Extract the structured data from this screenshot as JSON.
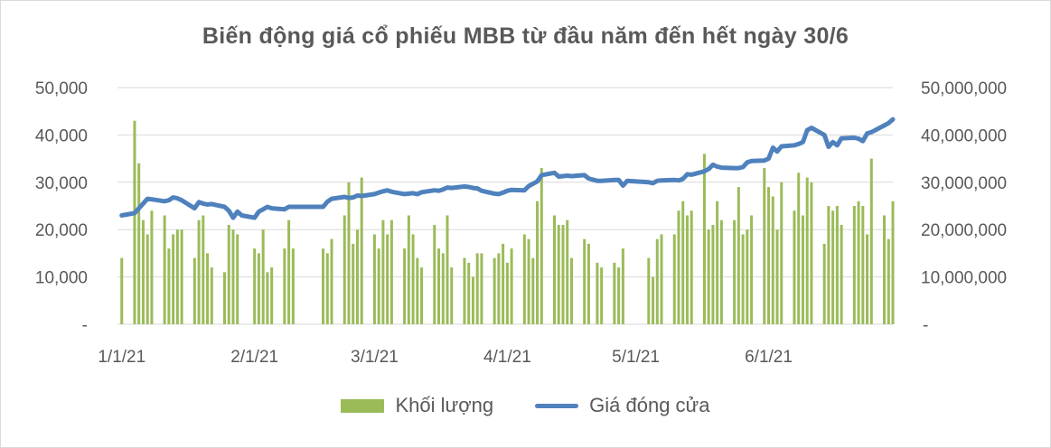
{
  "chart_data": {
    "type": "bar+line",
    "title": "Biến động giá cổ phiếu MBB từ đầu năm đến hết ngày 30/6",
    "x_start": "2021-01-01",
    "x_end": "2021-06-30",
    "xlim": [
      "2020-12-31",
      "2021-06-30"
    ],
    "xticks": [
      "1/1/21",
      "2/1/21",
      "3/1/21",
      "4/1/21",
      "5/1/21",
      "6/1/21"
    ],
    "left_axis": {
      "ylim": [
        0,
        50000
      ],
      "ticks": [
        "-",
        "10,000",
        "20,000",
        "30,000",
        "40,000",
        "50,000"
      ]
    },
    "right_axis": {
      "ylim": [
        0,
        50000000
      ],
      "ticks": [
        "-",
        "10,000,000",
        "20,000,000",
        "30,000,000",
        "40,000,000",
        "50,000,000"
      ]
    },
    "grid": true,
    "legend_position": "bottom",
    "series": [
      {
        "name": "Khối lượng",
        "type": "bar",
        "axis": "right",
        "color": "#9bbb59",
        "points": [
          [
            "2021-01-01",
            14000000
          ],
          [
            "2021-01-04",
            43000000
          ],
          [
            "2021-01-05",
            34000000
          ],
          [
            "2021-01-06",
            22000000
          ],
          [
            "2021-01-07",
            19000000
          ],
          [
            "2021-01-08",
            24000000
          ],
          [
            "2021-01-11",
            23000000
          ],
          [
            "2021-01-12",
            16000000
          ],
          [
            "2021-01-13",
            19000000
          ],
          [
            "2021-01-14",
            20000000
          ],
          [
            "2021-01-15",
            20000000
          ],
          [
            "2021-01-18",
            14000000
          ],
          [
            "2021-01-19",
            22000000
          ],
          [
            "2021-01-20",
            23000000
          ],
          [
            "2021-01-21",
            15000000
          ],
          [
            "2021-01-22",
            12000000
          ],
          [
            "2021-01-25",
            11000000
          ],
          [
            "2021-01-26",
            21000000
          ],
          [
            "2021-01-27",
            20000000
          ],
          [
            "2021-01-28",
            19000000
          ],
          [
            "2021-02-01",
            16000000
          ],
          [
            "2021-02-02",
            15000000
          ],
          [
            "2021-02-03",
            20000000
          ],
          [
            "2021-02-04",
            11000000
          ],
          [
            "2021-02-05",
            12000000
          ],
          [
            "2021-02-08",
            16000000
          ],
          [
            "2021-02-09",
            22000000
          ],
          [
            "2021-02-10",
            16000000
          ],
          [
            "2021-02-17",
            16000000
          ],
          [
            "2021-02-18",
            15000000
          ],
          [
            "2021-02-19",
            18000000
          ],
          [
            "2021-02-22",
            23000000
          ],
          [
            "2021-02-23",
            30000000
          ],
          [
            "2021-02-24",
            17000000
          ],
          [
            "2021-02-25",
            20000000
          ],
          [
            "2021-02-26",
            31000000
          ],
          [
            "2021-03-01",
            19000000
          ],
          [
            "2021-03-02",
            16000000
          ],
          [
            "2021-03-03",
            22000000
          ],
          [
            "2021-03-04",
            19000000
          ],
          [
            "2021-03-05",
            22000000
          ],
          [
            "2021-03-08",
            16000000
          ],
          [
            "2021-03-09",
            23000000
          ],
          [
            "2021-03-10",
            19000000
          ],
          [
            "2021-03-11",
            14000000
          ],
          [
            "2021-03-12",
            12000000
          ],
          [
            "2021-03-15",
            21000000
          ],
          [
            "2021-03-16",
            16000000
          ],
          [
            "2021-03-17",
            15000000
          ],
          [
            "2021-03-18",
            23000000
          ],
          [
            "2021-03-19",
            12000000
          ],
          [
            "2021-03-22",
            14000000
          ],
          [
            "2021-03-23",
            13000000
          ],
          [
            "2021-03-24",
            10000000
          ],
          [
            "2021-03-25",
            15000000
          ],
          [
            "2021-03-26",
            15000000
          ],
          [
            "2021-03-29",
            14000000
          ],
          [
            "2021-03-30",
            15000000
          ],
          [
            "2021-03-31",
            17000000
          ],
          [
            "2021-04-01",
            13000000
          ],
          [
            "2021-04-02",
            16000000
          ],
          [
            "2021-04-05",
            19000000
          ],
          [
            "2021-04-06",
            18000000
          ],
          [
            "2021-04-07",
            14000000
          ],
          [
            "2021-04-08",
            26000000
          ],
          [
            "2021-04-09",
            33000000
          ],
          [
            "2021-04-12",
            23000000
          ],
          [
            "2021-04-13",
            21000000
          ],
          [
            "2021-04-14",
            21000000
          ],
          [
            "2021-04-15",
            22000000
          ],
          [
            "2021-04-16",
            14000000
          ],
          [
            "2021-04-19",
            18000000
          ],
          [
            "2021-04-20",
            17000000
          ],
          [
            "2021-04-22",
            13000000
          ],
          [
            "2021-04-23",
            12000000
          ],
          [
            "2021-04-26",
            13000000
          ],
          [
            "2021-04-27",
            12000000
          ],
          [
            "2021-04-28",
            16000000
          ],
          [
            "2021-05-04",
            14000000
          ],
          [
            "2021-05-05",
            10000000
          ],
          [
            "2021-05-06",
            18000000
          ],
          [
            "2021-05-07",
            19000000
          ],
          [
            "2021-05-10",
            19000000
          ],
          [
            "2021-05-11",
            24000000
          ],
          [
            "2021-05-12",
            26000000
          ],
          [
            "2021-05-13",
            23000000
          ],
          [
            "2021-05-14",
            24000000
          ],
          [
            "2021-05-17",
            36000000
          ],
          [
            "2021-05-18",
            20000000
          ],
          [
            "2021-05-19",
            21000000
          ],
          [
            "2021-05-20",
            26000000
          ],
          [
            "2021-05-21",
            22000000
          ],
          [
            "2021-05-24",
            22000000
          ],
          [
            "2021-05-25",
            29000000
          ],
          [
            "2021-05-26",
            19000000
          ],
          [
            "2021-05-27",
            20000000
          ],
          [
            "2021-05-28",
            23000000
          ],
          [
            "2021-05-31",
            33000000
          ],
          [
            "2021-06-01",
            29000000
          ],
          [
            "2021-06-02",
            27000000
          ],
          [
            "2021-06-03",
            20000000
          ],
          [
            "2021-06-04",
            30000000
          ],
          [
            "2021-06-07",
            24000000
          ],
          [
            "2021-06-08",
            32000000
          ],
          [
            "2021-06-09",
            23000000
          ],
          [
            "2021-06-10",
            31000000
          ],
          [
            "2021-06-11",
            30000000
          ],
          [
            "2021-06-14",
            17000000
          ],
          [
            "2021-06-15",
            25000000
          ],
          [
            "2021-06-16",
            24000000
          ],
          [
            "2021-06-17",
            25000000
          ],
          [
            "2021-06-18",
            21000000
          ],
          [
            "2021-06-21",
            25000000
          ],
          [
            "2021-06-22",
            26000000
          ],
          [
            "2021-06-23",
            25000000
          ],
          [
            "2021-06-24",
            19000000
          ],
          [
            "2021-06-25",
            35000000
          ],
          [
            "2021-06-28",
            23000000
          ],
          [
            "2021-06-29",
            18000000
          ],
          [
            "2021-06-30",
            26000000
          ]
        ]
      },
      {
        "name": "Giá đóng cửa",
        "type": "line",
        "axis": "left",
        "color": "#4f81bd",
        "points": [
          [
            "2021-01-01",
            23000
          ],
          [
            "2021-01-04",
            23500
          ],
          [
            "2021-01-05",
            24500
          ],
          [
            "2021-01-06",
            25500
          ],
          [
            "2021-01-07",
            26500
          ],
          [
            "2021-01-08",
            26400
          ],
          [
            "2021-01-11",
            26000
          ],
          [
            "2021-01-12",
            26200
          ],
          [
            "2021-01-13",
            26800
          ],
          [
            "2021-01-14",
            26600
          ],
          [
            "2021-01-15",
            26200
          ],
          [
            "2021-01-18",
            24500
          ],
          [
            "2021-01-19",
            25800
          ],
          [
            "2021-01-20",
            25500
          ],
          [
            "2021-01-21",
            25300
          ],
          [
            "2021-01-22",
            25400
          ],
          [
            "2021-01-25",
            24800
          ],
          [
            "2021-01-26",
            24000
          ],
          [
            "2021-01-27",
            22500
          ],
          [
            "2021-01-28",
            23800
          ],
          [
            "2021-01-29",
            23000
          ],
          [
            "2021-02-01",
            22500
          ],
          [
            "2021-02-02",
            23800
          ],
          [
            "2021-02-03",
            24300
          ],
          [
            "2021-02-04",
            24800
          ],
          [
            "2021-02-05",
            24500
          ],
          [
            "2021-02-08",
            24300
          ],
          [
            "2021-02-09",
            24800
          ],
          [
            "2021-02-10",
            24800
          ],
          [
            "2021-02-17",
            24800
          ],
          [
            "2021-02-18",
            25900
          ],
          [
            "2021-02-19",
            26500
          ],
          [
            "2021-02-22",
            26900
          ],
          [
            "2021-02-23",
            26700
          ],
          [
            "2021-02-24",
            26800
          ],
          [
            "2021-02-25",
            27200
          ],
          [
            "2021-02-26",
            27100
          ],
          [
            "2021-03-01",
            27500
          ],
          [
            "2021-03-02",
            27800
          ],
          [
            "2021-03-03",
            28100
          ],
          [
            "2021-03-04",
            28300
          ],
          [
            "2021-03-05",
            28000
          ],
          [
            "2021-03-08",
            27500
          ],
          [
            "2021-03-09",
            27600
          ],
          [
            "2021-03-10",
            27700
          ],
          [
            "2021-03-11",
            27500
          ],
          [
            "2021-03-12",
            27900
          ],
          [
            "2021-03-15",
            28300
          ],
          [
            "2021-03-16",
            28200
          ],
          [
            "2021-03-17",
            28500
          ],
          [
            "2021-03-18",
            28900
          ],
          [
            "2021-03-19",
            28800
          ],
          [
            "2021-03-22",
            29100
          ],
          [
            "2021-03-23",
            29000
          ],
          [
            "2021-03-24",
            28800
          ],
          [
            "2021-03-25",
            28700
          ],
          [
            "2021-03-26",
            28200
          ],
          [
            "2021-03-29",
            27600
          ],
          [
            "2021-03-30",
            27500
          ],
          [
            "2021-03-31",
            27800
          ],
          [
            "2021-04-01",
            28200
          ],
          [
            "2021-04-02",
            28400
          ],
          [
            "2021-04-05",
            28300
          ],
          [
            "2021-04-06",
            29200
          ],
          [
            "2021-04-07",
            29700
          ],
          [
            "2021-04-08",
            30200
          ],
          [
            "2021-04-09",
            31500
          ],
          [
            "2021-04-12",
            32000
          ],
          [
            "2021-04-13",
            31200
          ],
          [
            "2021-04-14",
            31300
          ],
          [
            "2021-04-15",
            31400
          ],
          [
            "2021-04-16",
            31300
          ],
          [
            "2021-04-19",
            31500
          ],
          [
            "2021-04-20",
            30800
          ],
          [
            "2021-04-22",
            30300
          ],
          [
            "2021-04-23",
            30300
          ],
          [
            "2021-04-26",
            30500
          ],
          [
            "2021-04-27",
            30500
          ],
          [
            "2021-04-28",
            29300
          ],
          [
            "2021-04-29",
            30300
          ],
          [
            "2021-05-04",
            30000
          ],
          [
            "2021-05-05",
            29800
          ],
          [
            "2021-05-06",
            30300
          ],
          [
            "2021-05-07",
            30400
          ],
          [
            "2021-05-10",
            30500
          ],
          [
            "2021-05-11",
            30400
          ],
          [
            "2021-05-12",
            30700
          ],
          [
            "2021-05-13",
            31700
          ],
          [
            "2021-05-14",
            31600
          ],
          [
            "2021-05-17",
            32300
          ],
          [
            "2021-05-18",
            32800
          ],
          [
            "2021-05-19",
            33700
          ],
          [
            "2021-05-20",
            33300
          ],
          [
            "2021-05-21",
            33100
          ],
          [
            "2021-05-24",
            33000
          ],
          [
            "2021-05-25",
            33000
          ],
          [
            "2021-05-26",
            33200
          ],
          [
            "2021-05-27",
            34200
          ],
          [
            "2021-05-28",
            34500
          ],
          [
            "2021-05-31",
            34600
          ],
          [
            "2021-06-01",
            35000
          ],
          [
            "2021-06-02",
            37300
          ],
          [
            "2021-06-03",
            36500
          ],
          [
            "2021-06-04",
            37600
          ],
          [
            "2021-06-07",
            37800
          ],
          [
            "2021-06-08",
            38100
          ],
          [
            "2021-06-09",
            38500
          ],
          [
            "2021-06-10",
            41000
          ],
          [
            "2021-06-11",
            41500
          ],
          [
            "2021-06-14",
            40000
          ],
          [
            "2021-06-15",
            37500
          ],
          [
            "2021-06-16",
            38500
          ],
          [
            "2021-06-17",
            37800
          ],
          [
            "2021-06-18",
            39300
          ],
          [
            "2021-06-21",
            39400
          ],
          [
            "2021-06-22",
            39200
          ],
          [
            "2021-06-23",
            38700
          ],
          [
            "2021-06-24",
            40300
          ],
          [
            "2021-06-25",
            40600
          ],
          [
            "2021-06-28",
            42000
          ],
          [
            "2021-06-29",
            42500
          ],
          [
            "2021-06-30",
            43300
          ]
        ]
      }
    ]
  }
}
